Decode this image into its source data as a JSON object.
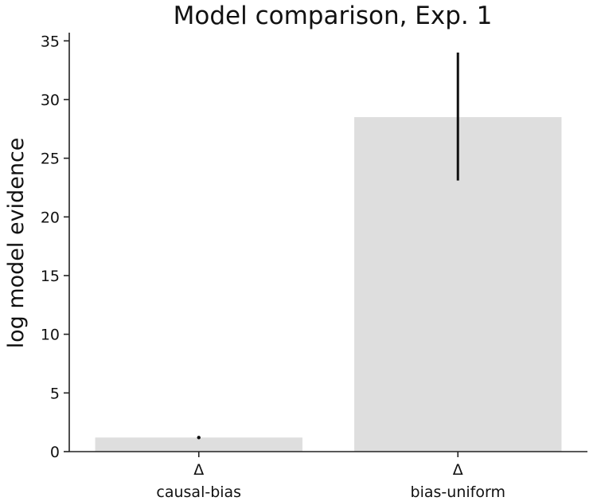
{
  "chart_data": {
    "type": "bar",
    "title": "Model comparison, Exp. 1",
    "xlabel": "",
    "ylabel": "log model evidence",
    "categories": [
      {
        "marker": "Δ",
        "label": "causal-bias"
      },
      {
        "marker": "Δ",
        "label": "bias-uniform"
      }
    ],
    "values": [
      1.2,
      28.5
    ],
    "error": [
      [
        1.2,
        1.2
      ],
      [
        23.1,
        34.0
      ]
    ],
    "ylim": [
      0,
      35.7
    ],
    "yticks": [
      0,
      5,
      10,
      15,
      20,
      25,
      30,
      35
    ],
    "bar_color": "#dedede",
    "error_color": "#111111",
    "grid": false
  }
}
